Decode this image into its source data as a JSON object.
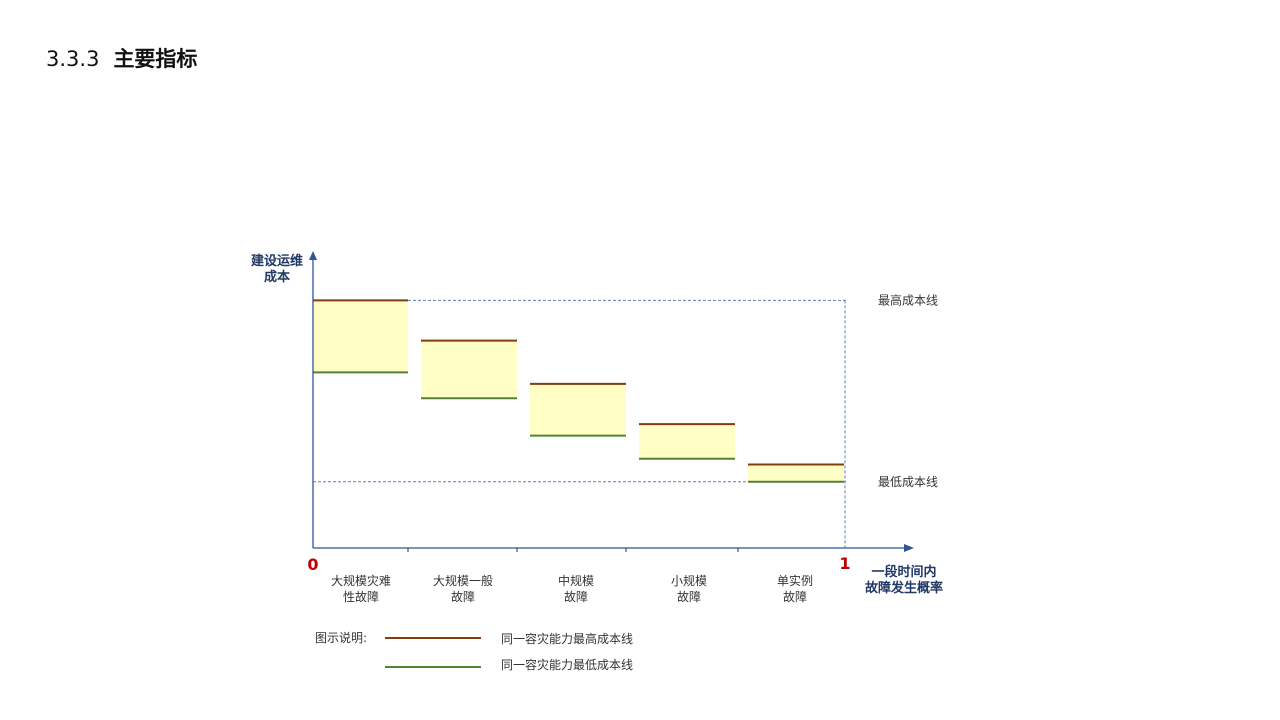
{
  "slide": {
    "section_number": "3.3.3",
    "title": "主要指标"
  },
  "chart_data": {
    "type": "bar",
    "y_axis_title": [
      "建设运维",
      "成本"
    ],
    "x_axis_title": [
      "一段时间内",
      "故障发生概率"
    ],
    "x_start_label": "0",
    "x_end_label": "1",
    "categories": [
      [
        "大规模灾难",
        "性故障"
      ],
      [
        "大规模一般",
        "故障"
      ],
      [
        "中规模",
        "故障"
      ],
      [
        "小规模",
        "故障"
      ],
      [
        "单实例",
        "故障"
      ]
    ],
    "series": [
      {
        "name": "同一容灾能力最高成本线",
        "values": [
          0.86,
          0.72,
          0.57,
          0.43,
          0.29
        ]
      },
      {
        "name": "同一容灾能力最低成本线",
        "values": [
          0.61,
          0.52,
          0.39,
          0.31,
          0.23
        ]
      }
    ],
    "reference_lines": [
      {
        "label": "最高成本线",
        "value": 0.86
      },
      {
        "label": "最低成本线",
        "value": 0.23
      }
    ],
    "ylim": [
      0,
      1
    ],
    "legend": {
      "caption": "图示说明:",
      "position": "bottom-left"
    },
    "colors": {
      "axis": "#2f5597",
      "reference_line": "#5b7fbf",
      "box_fill": "#ffffc5",
      "max_line": "#843c0c",
      "min_line": "#548235",
      "ticks": "#333333"
    }
  }
}
